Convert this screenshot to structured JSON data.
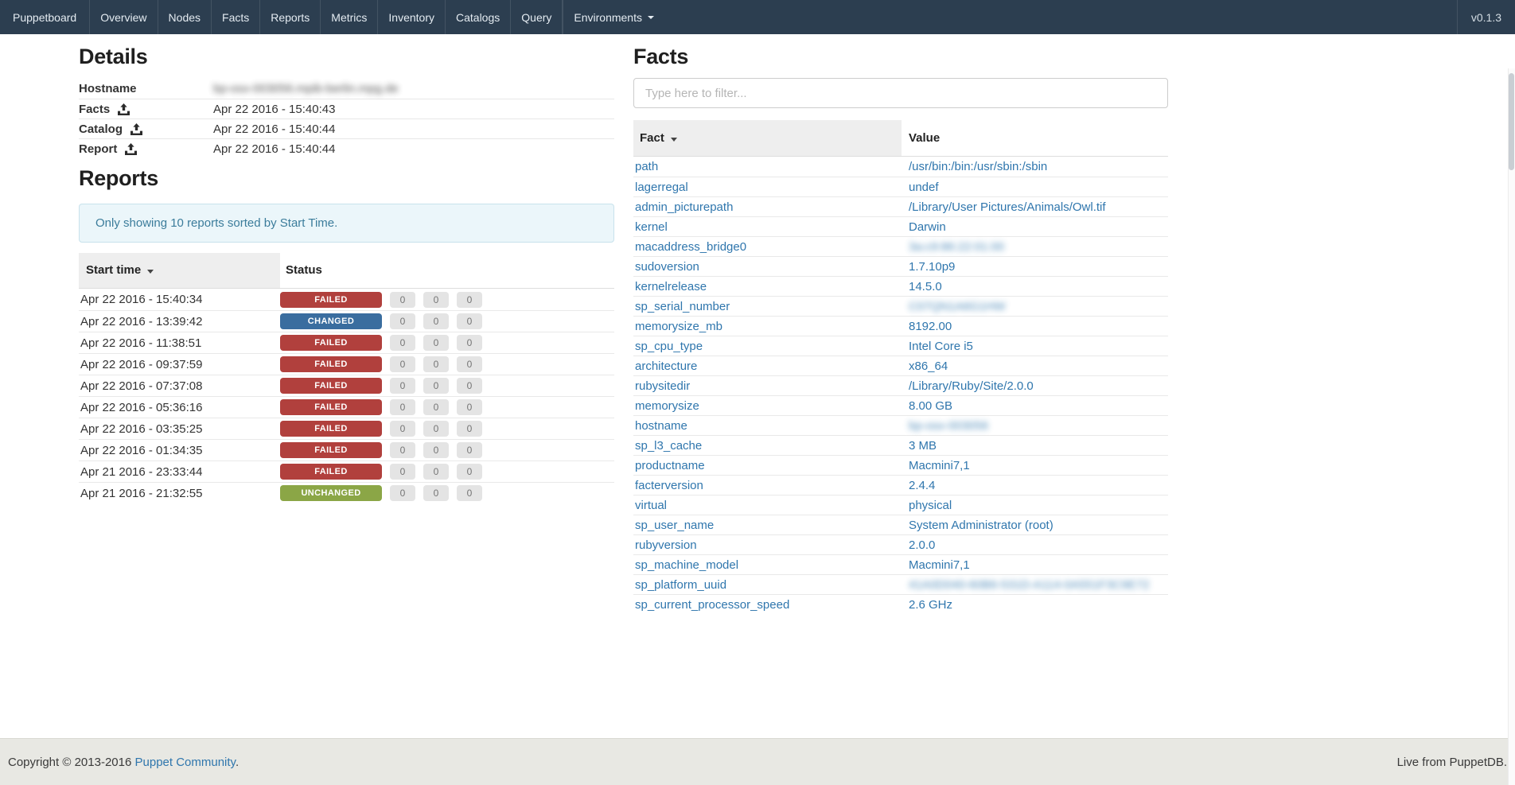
{
  "navbar": {
    "brand": "Puppetboard",
    "items": [
      {
        "label": "Overview"
      },
      {
        "label": "Nodes"
      },
      {
        "label": "Facts"
      },
      {
        "label": "Reports"
      },
      {
        "label": "Metrics"
      },
      {
        "label": "Inventory"
      },
      {
        "label": "Catalogs"
      },
      {
        "label": "Query"
      }
    ],
    "environments": {
      "label": "Environments",
      "icon": "caret-down-icon"
    },
    "version": "v0.1.3"
  },
  "details": {
    "title": "Details",
    "rows": [
      {
        "label": "Hostname",
        "icon": null,
        "value": "bp-osx-003056.mpib-berlin.mpg.de",
        "value_blurred": true
      },
      {
        "label": "Facts",
        "icon": "upload-icon",
        "value": "Apr 22 2016 - 15:40:43",
        "value_blurred": false
      },
      {
        "label": "Catalog",
        "icon": "upload-icon",
        "value": "Apr 22 2016 - 15:40:44",
        "value_blurred": false
      },
      {
        "label": "Report",
        "icon": "upload-icon",
        "value": "Apr 22 2016 - 15:40:44",
        "value_blurred": false
      }
    ]
  },
  "reports": {
    "title": "Reports",
    "notice": "Only showing 10 reports sorted by Start Time.",
    "columns": {
      "start_time": "Start time",
      "status": "Status",
      "sort_icon": "caret-down-icon",
      "sorted_by": "start_time"
    },
    "rows": [
      {
        "start_time": "Apr 22 2016 - 15:40:34",
        "status": "FAILED",
        "counts": [
          0,
          0,
          0
        ]
      },
      {
        "start_time": "Apr 22 2016 - 13:39:42",
        "status": "CHANGED",
        "counts": [
          0,
          0,
          0
        ]
      },
      {
        "start_time": "Apr 22 2016 - 11:38:51",
        "status": "FAILED",
        "counts": [
          0,
          0,
          0
        ]
      },
      {
        "start_time": "Apr 22 2016 - 09:37:59",
        "status": "FAILED",
        "counts": [
          0,
          0,
          0
        ]
      },
      {
        "start_time": "Apr 22 2016 - 07:37:08",
        "status": "FAILED",
        "counts": [
          0,
          0,
          0
        ]
      },
      {
        "start_time": "Apr 22 2016 - 05:36:16",
        "status": "FAILED",
        "counts": [
          0,
          0,
          0
        ]
      },
      {
        "start_time": "Apr 22 2016 - 03:35:25",
        "status": "FAILED",
        "counts": [
          0,
          0,
          0
        ]
      },
      {
        "start_time": "Apr 22 2016 - 01:34:35",
        "status": "FAILED",
        "counts": [
          0,
          0,
          0
        ]
      },
      {
        "start_time": "Apr 21 2016 - 23:33:44",
        "status": "FAILED",
        "counts": [
          0,
          0,
          0
        ]
      },
      {
        "start_time": "Apr 21 2016 - 21:32:55",
        "status": "UNCHANGED",
        "counts": [
          0,
          0,
          0
        ]
      }
    ]
  },
  "facts": {
    "title": "Facts",
    "filter_placeholder": "Type here to filter...",
    "columns": {
      "fact": "Fact",
      "value": "Value",
      "sort_icon": "caret-down-icon",
      "sorted_by": "fact"
    },
    "rows": [
      {
        "fact": "path",
        "value": "/usr/bin:/bin:/usr/sbin:/sbin",
        "value_blurred": false
      },
      {
        "fact": "lagerregal",
        "value": "undef",
        "value_blurred": false
      },
      {
        "fact": "admin_picturepath",
        "value": "/Library/User Pictures/Animals/Owl.tif",
        "value_blurred": false
      },
      {
        "fact": "kernel",
        "value": "Darwin",
        "value_blurred": false
      },
      {
        "fact": "macaddress_bridge0",
        "value": "3a:c9:86:22:01:00",
        "value_blurred": true
      },
      {
        "fact": "sudoversion",
        "value": "1.7.10p9",
        "value_blurred": false
      },
      {
        "fact": "kernelrelease",
        "value": "14.5.0",
        "value_blurred": false
      },
      {
        "fact": "sp_serial_number",
        "value": "C07QN1A6G1HW",
        "value_blurred": true
      },
      {
        "fact": "memorysize_mb",
        "value": "8192.00",
        "value_blurred": false
      },
      {
        "fact": "sp_cpu_type",
        "value": "Intel Core i5",
        "value_blurred": false
      },
      {
        "fact": "architecture",
        "value": "x86_64",
        "value_blurred": false
      },
      {
        "fact": "rubysitedir",
        "value": "/Library/Ruby/Site/2.0.0",
        "value_blurred": false
      },
      {
        "fact": "memorysize",
        "value": "8.00 GB",
        "value_blurred": false
      },
      {
        "fact": "hostname",
        "value": "bp-osx-003056",
        "value_blurred": true
      },
      {
        "fact": "sp_l3_cache",
        "value": "3 MB",
        "value_blurred": false
      },
      {
        "fact": "productname",
        "value": "Macmini7,1",
        "value_blurred": false
      },
      {
        "fact": "facterversion",
        "value": "2.4.4",
        "value_blurred": false
      },
      {
        "fact": "virtual",
        "value": "physical",
        "value_blurred": false
      },
      {
        "fact": "sp_user_name",
        "value": "System Administrator (root)",
        "value_blurred": false
      },
      {
        "fact": "rubyversion",
        "value": "2.0.0",
        "value_blurred": false
      },
      {
        "fact": "sp_machine_model",
        "value": "Macmini7,1",
        "value_blurred": false
      },
      {
        "fact": "sp_platform_uuid",
        "value": "41A0D040-60B6-531D-A114-0A551F3C9E72",
        "value_blurred": true
      },
      {
        "fact": "sp_current_processor_speed",
        "value": "2.6 GHz",
        "value_blurred": false
      }
    ]
  },
  "footer": {
    "copyright_prefix": "Copyright © 2013-2016 ",
    "copyright_link": "Puppet Community",
    "copyright_suffix": ".",
    "right_text": "Live from PuppetDB."
  },
  "colors": {
    "navbar_bg": "#2c3e50",
    "link": "#2f76ad",
    "thead_bg": "#eeeeee",
    "alert_bg": "#ebf6fa",
    "alert_border": "#c8e2ec",
    "alert_text": "#3b7c9b",
    "count_badge_bg": "#e4e4e4",
    "footer_bg": "#e8e8e3",
    "status": {
      "FAILED": "#b1403d",
      "CHANGED": "#3a6d9f",
      "UNCHANGED": "#8ba646"
    }
  }
}
